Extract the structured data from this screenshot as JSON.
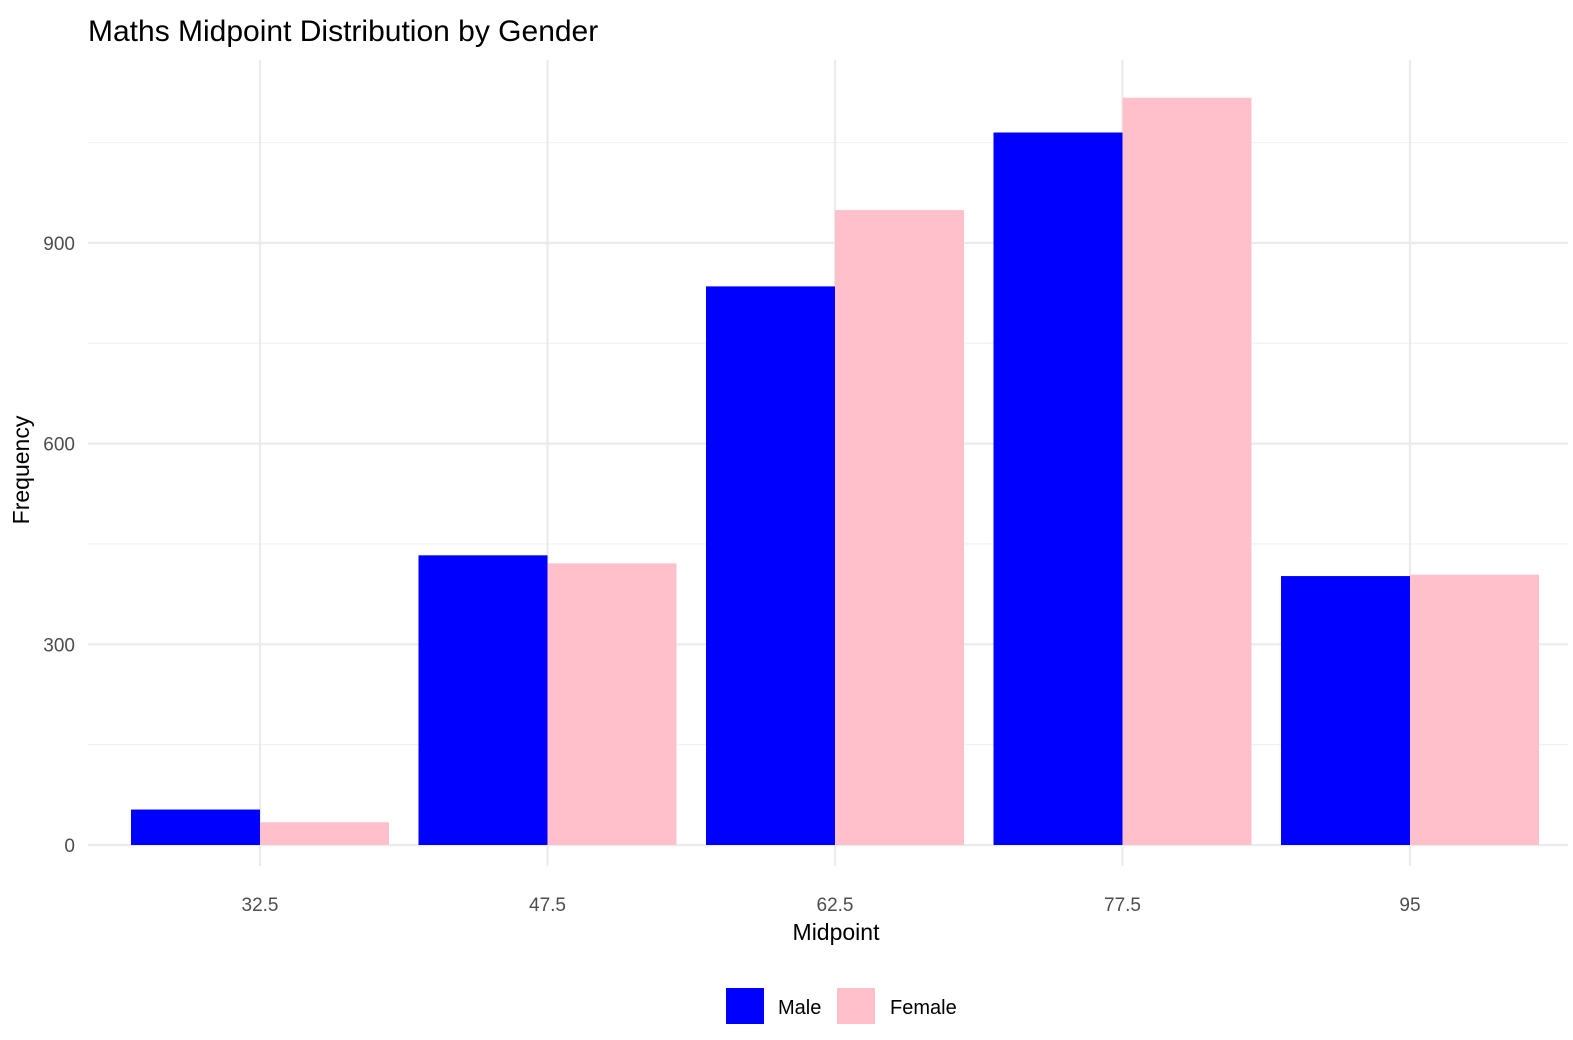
{
  "chart_data": {
    "type": "bar",
    "title": "Maths Midpoint Distribution by Gender",
    "xlabel": "Midpoint",
    "ylabel": "Frequency",
    "categories": [
      "32.5",
      "47.5",
      "62.5",
      "77.5",
      "95"
    ],
    "series": [
      {
        "name": "Male",
        "color": "#0000ff",
        "values": [
          53,
          433,
          835,
          1065,
          402
        ]
      },
      {
        "name": "Female",
        "color": "#ffc0cb",
        "values": [
          34,
          421,
          949,
          1117,
          404
        ]
      }
    ],
    "ylim": [
      0,
      1170
    ],
    "yticks": [
      0,
      300,
      600,
      900
    ],
    "grid": true,
    "legend_position": "bottom"
  }
}
